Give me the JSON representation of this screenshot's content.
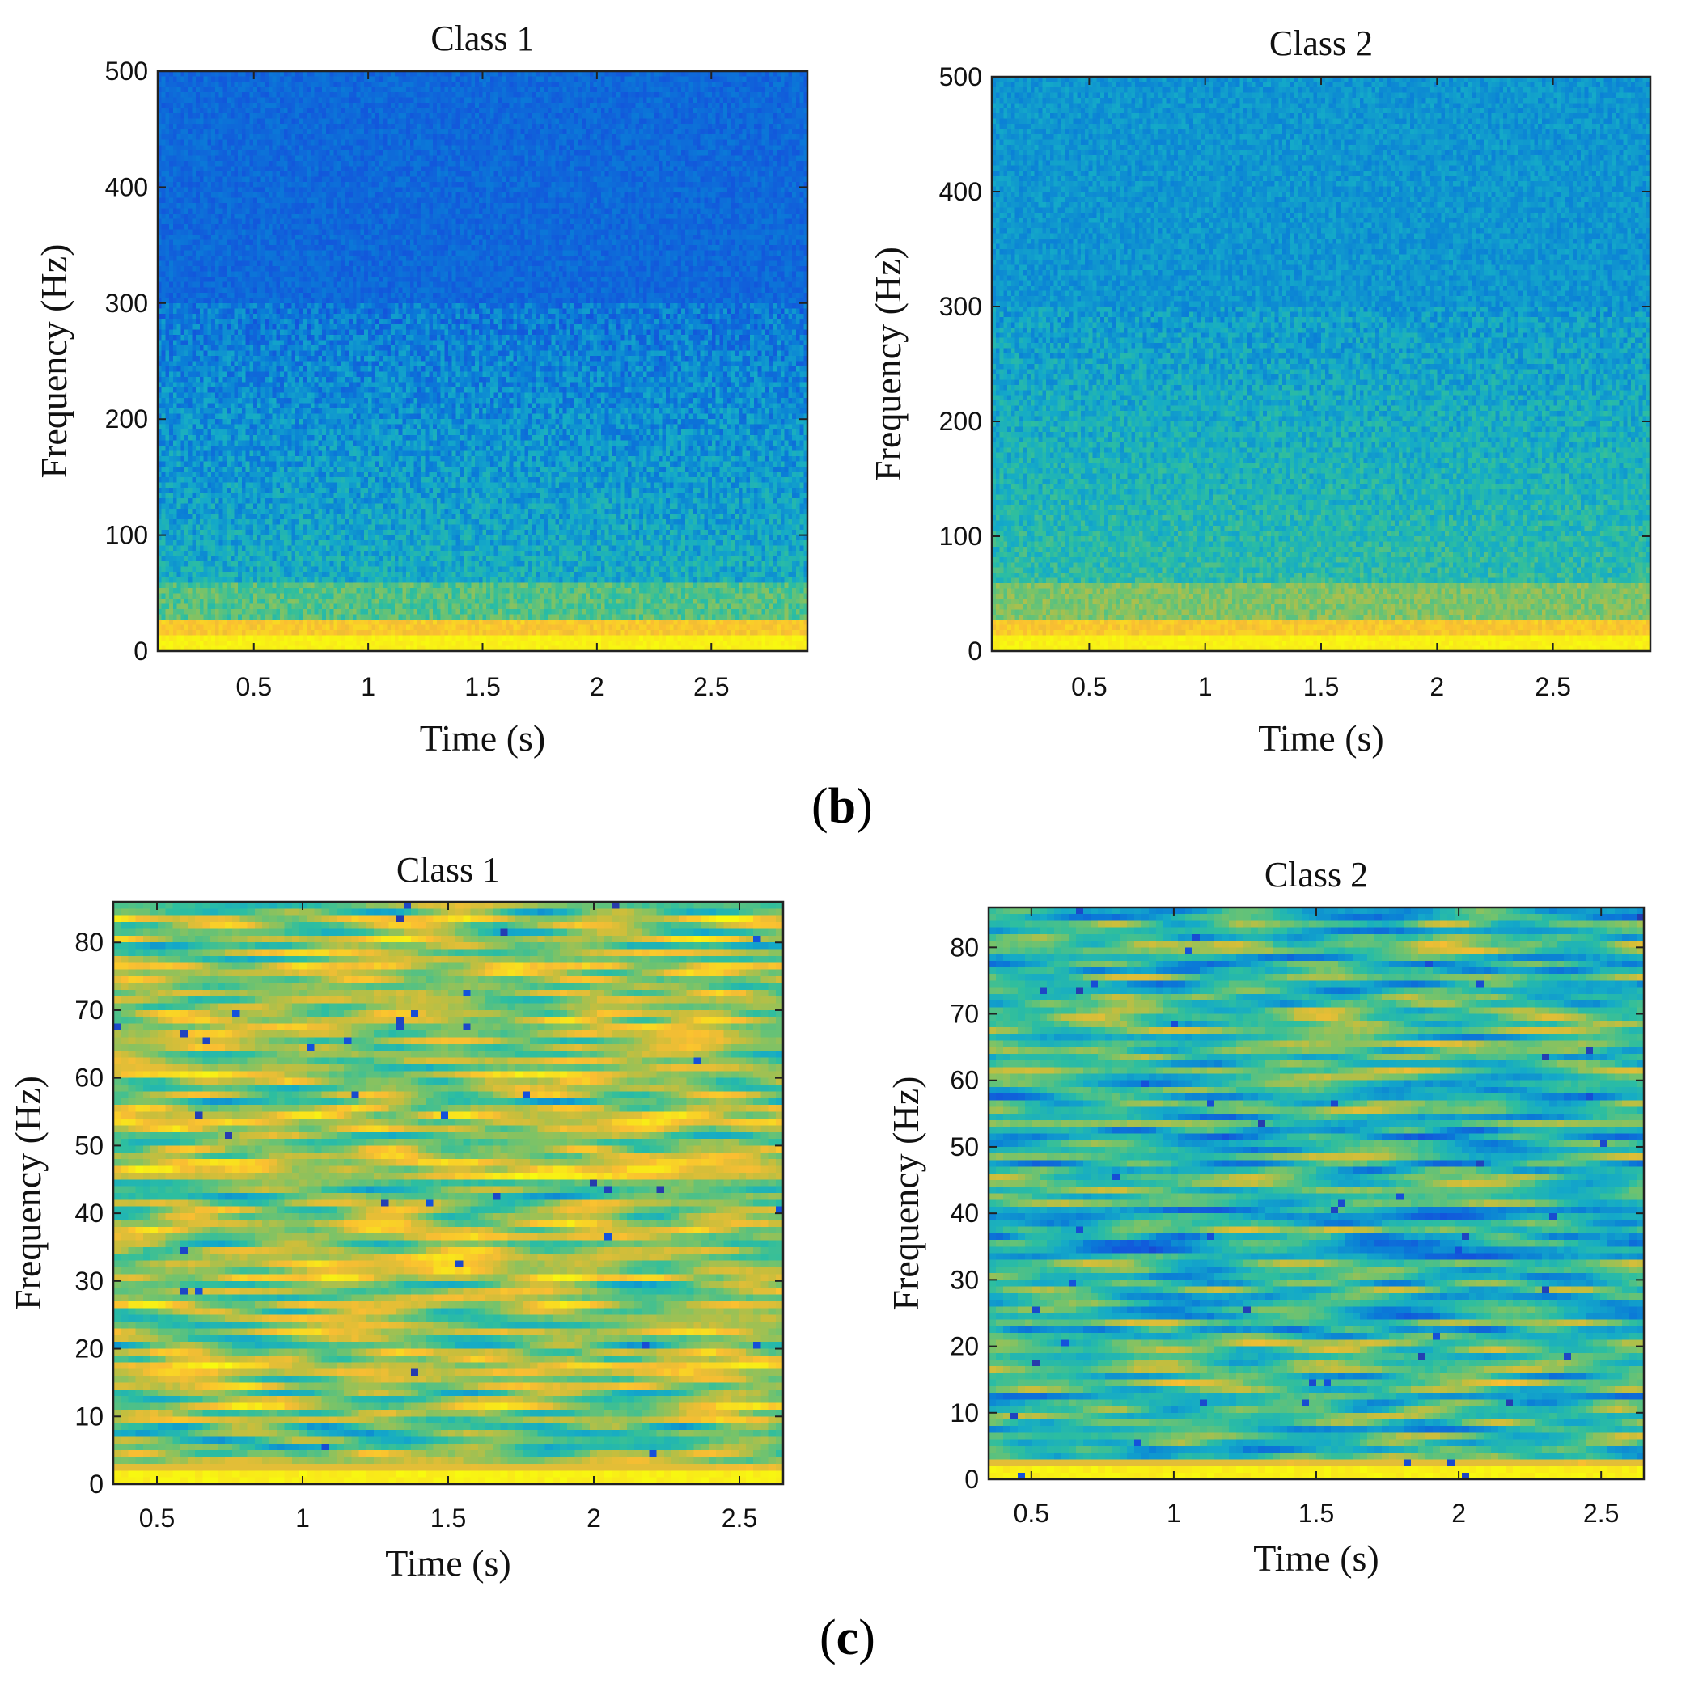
{
  "figure": {
    "panel_b_label": "b",
    "panel_c_label": "c"
  },
  "chart_data": [
    {
      "id": "b1",
      "panel": "b",
      "type": "heatmap",
      "title": "Class 1",
      "xlabel": "Time (s)",
      "ylabel": "Frequency (Hz)",
      "xlim": [
        0.08,
        2.92
      ],
      "ylim": [
        0,
        500
      ],
      "xticks": [
        0.5,
        1,
        1.5,
        2,
        2.5
      ],
      "xtick_labels": [
        "0.5",
        "1",
        "1.5",
        "2",
        "2.5"
      ],
      "yticks": [
        0,
        100,
        200,
        300,
        400,
        500
      ],
      "ytick_labels": [
        "0",
        "100",
        "200",
        "300",
        "400",
        "500"
      ],
      "colormap": "parula",
      "description_levels": {
        "above_300Hz": 0.18,
        "100_to_300Hz": "0.25-0.4",
        "20_to_60Hz": 0.55,
        "0_to_15Hz": 0.95
      },
      "seed": 11
    },
    {
      "id": "b2",
      "panel": "b",
      "type": "heatmap",
      "title": "Class 2",
      "xlabel": "Time (s)",
      "ylabel": "Frequency (Hz)",
      "xlim": [
        0.08,
        2.92
      ],
      "ylim": [
        0,
        500
      ],
      "xticks": [
        0.5,
        1,
        1.5,
        2,
        2.5
      ],
      "xtick_labels": [
        "0.5",
        "1",
        "1.5",
        "2",
        "2.5"
      ],
      "yticks": [
        0,
        100,
        200,
        300,
        400,
        500
      ],
      "ytick_labels": [
        "0",
        "100",
        "200",
        "300",
        "400",
        "500"
      ],
      "colormap": "parula",
      "description_levels": {
        "above_300Hz": 0.3,
        "100_to_300Hz": "0.35-0.45",
        "20_to_60Hz": 0.62,
        "0_to_15Hz": 0.95
      },
      "seed": 23
    },
    {
      "id": "c1",
      "panel": "c",
      "type": "heatmap",
      "title": "Class 1",
      "xlabel": "Time (s)",
      "ylabel": "Frequency (Hz)",
      "xlim": [
        0.35,
        2.65
      ],
      "ylim": [
        0,
        86
      ],
      "xticks": [
        0.5,
        1,
        1.5,
        2,
        2.5
      ],
      "xtick_labels": [
        "0.5",
        "1",
        "1.5",
        "2",
        "2.5"
      ],
      "yticks": [
        0,
        10,
        20,
        30,
        40,
        50,
        60,
        70,
        80
      ],
      "ytick_labels": [
        "0",
        "10",
        "20",
        "30",
        "40",
        "50",
        "60",
        "70",
        "80"
      ],
      "colormap": "parula",
      "description_levels": {
        "typical": "0.45-0.8",
        "0_to_2Hz": 0.95
      },
      "seed": 37
    },
    {
      "id": "c2",
      "panel": "c",
      "type": "heatmap",
      "title": "Class 2",
      "xlabel": "Time (s)",
      "ylabel": "Frequency (Hz)",
      "xlim": [
        0.35,
        2.65
      ],
      "ylim": [
        0,
        86
      ],
      "xticks": [
        0.5,
        1,
        1.5,
        2,
        2.5
      ],
      "xtick_labels": [
        "0.5",
        "1",
        "1.5",
        "2",
        "2.5"
      ],
      "yticks": [
        0,
        10,
        20,
        30,
        40,
        50,
        60,
        70,
        80
      ],
      "ytick_labels": [
        "0",
        "10",
        "20",
        "30",
        "40",
        "50",
        "60",
        "70",
        "80"
      ],
      "colormap": "parula",
      "description_levels": {
        "typical": "0.3-0.7",
        "0_to_2Hz": 0.95
      },
      "seed": 53
    }
  ]
}
